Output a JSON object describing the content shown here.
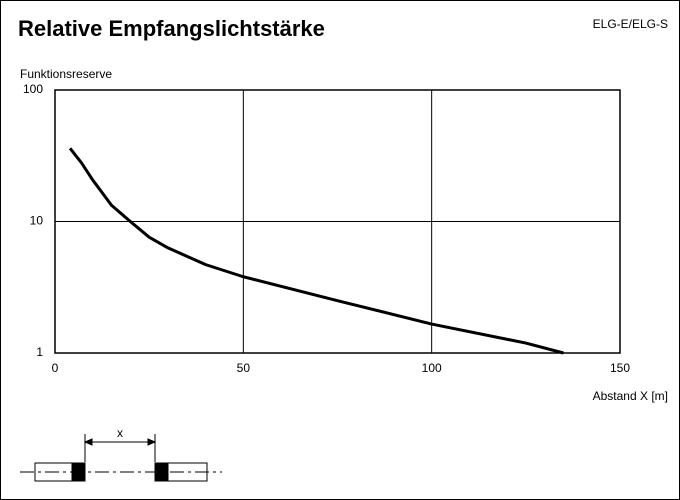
{
  "chart_data": {
    "type": "line",
    "title": "Relative Empfangslichtstärke",
    "subtitle": "ELG-E/ELG-S",
    "y_label": "Funktionsreserve",
    "x_label": "Abstand X [m]",
    "annotation": "x",
    "x": [
      4,
      7,
      10,
      15,
      20,
      25,
      30,
      40,
      50,
      75,
      100,
      125,
      135
    ],
    "values": [
      36,
      28,
      20.7,
      13.3,
      10,
      7.6,
      6.3,
      4.7,
      3.8,
      2.5,
      1.66,
      1.19,
      1
    ],
    "color": "#000000",
    "log_y": true,
    "grid": true,
    "xlim": [
      0,
      150
    ],
    "xticks": [
      0,
      50,
      100,
      150
    ],
    "ylim": [
      1,
      100
    ],
    "yticks": [
      1,
      10,
      100
    ]
  }
}
